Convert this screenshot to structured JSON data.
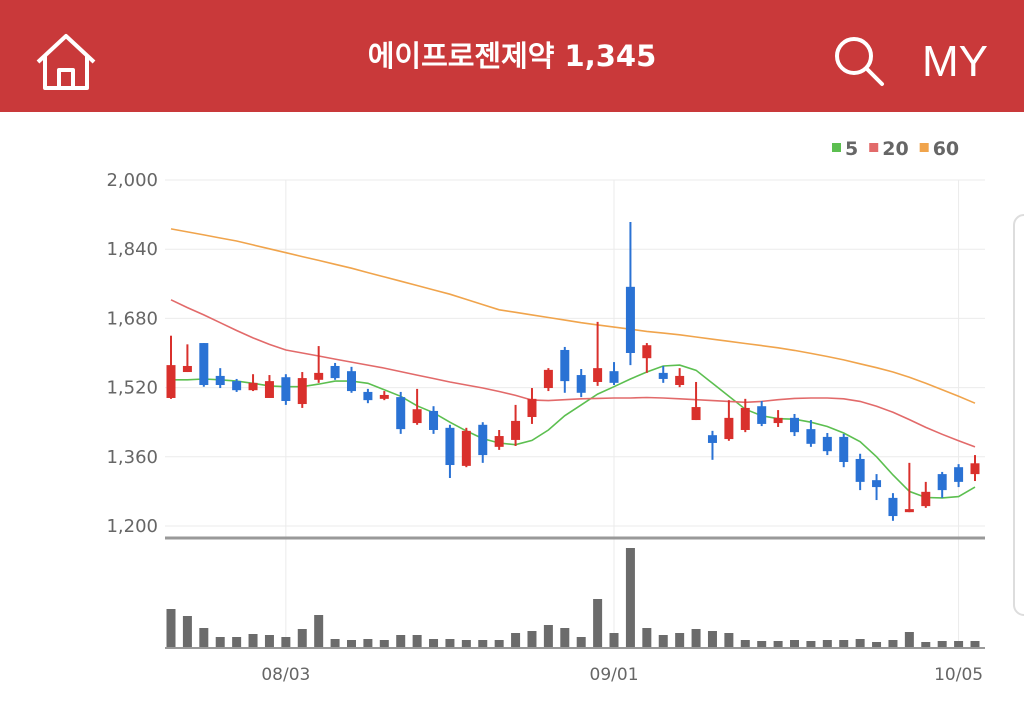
{
  "header": {
    "title": "에이프로젠제약 1,345",
    "right_label": "MY"
  },
  "chart_data": {
    "type": "candlestick",
    "categories": [
      null,
      null,
      null,
      null,
      null,
      null,
      null,
      "08/03",
      null,
      null,
      null,
      null,
      null,
      null,
      null,
      null,
      null,
      null,
      null,
      null,
      null,
      null,
      null,
      null,
      null,
      null,
      null,
      "09/01",
      null,
      null,
      null,
      null,
      null,
      null,
      null,
      null,
      null,
      null,
      null,
      null,
      null,
      null,
      null,
      null,
      null,
      null,
      null,
      null,
      "10/05",
      null
    ],
    "open": [
      1496,
      1556,
      1623,
      1547,
      1535,
      1514,
      1496,
      1544,
      1482,
      1538,
      1570,
      1558,
      1510,
      1494,
      1498,
      1438,
      1466,
      1427,
      1339,
      1434,
      1383,
      1399,
      1452,
      1519,
      1607,
      1549,
      1533,
      1558,
      1753,
      1588,
      1554,
      1526,
      1445,
      1410,
      1401,
      1422,
      1477,
      1438,
      1450,
      1424,
      1406,
      1406,
      1355,
      1306,
      1265,
      1232,
      1246,
      1320,
      1336,
      1320
    ],
    "high": [
      1640,
      1620,
      1623,
      1565,
      1540,
      1551,
      1549,
      1551,
      1556,
      1616,
      1577,
      1568,
      1517,
      1512,
      1510,
      1517,
      1477,
      1434,
      1427,
      1440,
      1422,
      1480,
      1519,
      1565,
      1614,
      1563,
      1672,
      1579,
      1903,
      1623,
      1570,
      1565,
      1533,
      1420,
      1491,
      1494,
      1489,
      1468,
      1459,
      1445,
      1415,
      1413,
      1367,
      1320,
      1276,
      1346,
      1302,
      1325,
      1343,
      1364
    ],
    "low": [
      1494,
      1556,
      1522,
      1519,
      1510,
      1512,
      1496,
      1480,
      1473,
      1531,
      1538,
      1508,
      1484,
      1491,
      1413,
      1434,
      1413,
      1311,
      1336,
      1346,
      1376,
      1385,
      1436,
      1512,
      1508,
      1498,
      1524,
      1526,
      1572,
      1554,
      1531,
      1521,
      1445,
      1353,
      1397,
      1417,
      1431,
      1429,
      1408,
      1383,
      1364,
      1336,
      1283,
      1260,
      1212,
      1232,
      1242,
      1265,
      1290,
      1304
    ],
    "close": [
      1572,
      1570,
      1526,
      1526,
      1514,
      1531,
      1535,
      1489,
      1542,
      1554,
      1542,
      1512,
      1491,
      1503,
      1424,
      1470,
      1422,
      1341,
      1420,
      1364,
      1408,
      1443,
      1494,
      1561,
      1535,
      1508,
      1565,
      1531,
      1600,
      1618,
      1540,
      1547,
      1475,
      1392,
      1450,
      1473,
      1436,
      1450,
      1417,
      1390,
      1373,
      1348,
      1302,
      1290,
      1223,
      1239,
      1279,
      1283,
      1302,
      1345
    ],
    "up_color": "#d9302c",
    "down_color": "#2a72d4",
    "ylim": [
      1200,
      2000
    ],
    "yticks": [
      {
        "value": 1200,
        "label": "1,200"
      },
      {
        "value": 1360,
        "label": "1,360"
      },
      {
        "value": 1520,
        "label": "1,520"
      },
      {
        "value": 1680,
        "label": "1,680"
      },
      {
        "value": 1840,
        "label": "1,840"
      },
      {
        "value": 2000,
        "label": "2,000"
      }
    ],
    "grid": true,
    "legend": "top-right",
    "series": [
      {
        "name": "5",
        "color": "#5cbf50",
        "values": [
          1538,
          1538,
          1540,
          1538,
          1535,
          1530,
          1524,
          1522,
          1522,
          1528,
          1535,
          1535,
          1530,
          1515,
          1500,
          1478,
          1462,
          1440,
          1420,
          1402,
          1392,
          1388,
          1398,
          1422,
          1455,
          1480,
          1505,
          1522,
          1540,
          1556,
          1570,
          1572,
          1560,
          1530,
          1500,
          1470,
          1455,
          1448,
          1447,
          1440,
          1430,
          1415,
          1395,
          1360,
          1318,
          1280,
          1266,
          1265,
          1268,
          1290
        ]
      },
      {
        "name": "20",
        "color": "#e26a6a",
        "values": [
          1723,
          1705,
          1688,
          1670,
          1652,
          1635,
          1620,
          1607,
          1600,
          1593,
          1586,
          1579,
          1572,
          1565,
          1557,
          1549,
          1541,
          1533,
          1526,
          1519,
          1511,
          1502,
          1491,
          1490,
          1492,
          1494,
          1495,
          1496,
          1496,
          1497,
          1496,
          1494,
          1492,
          1490,
          1488,
          1486,
          1488,
          1492,
          1495,
          1496,
          1496,
          1494,
          1488,
          1477,
          1463,
          1446,
          1428,
          1412,
          1397,
          1383
        ]
      },
      {
        "name": "60",
        "color": "#f0a44c",
        "values": [
          1887,
          1880,
          1873,
          1866,
          1859,
          1850,
          1841,
          1832,
          1823,
          1814,
          1805,
          1796,
          1786,
          1776,
          1766,
          1756,
          1746,
          1736,
          1724,
          1712,
          1700,
          1694,
          1688,
          1682,
          1676,
          1670,
          1665,
          1660,
          1655,
          1650,
          1646,
          1642,
          1637,
          1632,
          1627,
          1622,
          1617,
          1612,
          1606,
          1599,
          1592,
          1584,
          1575,
          1566,
          1556,
          1544,
          1530,
          1515,
          1500,
          1484
        ]
      }
    ],
    "volume": {
      "color": "#6b6b6b",
      "values": [
        38,
        31,
        19,
        10,
        10,
        13,
        12,
        10,
        18,
        32,
        8,
        7,
        8,
        7,
        12,
        12,
        8,
        8,
        7,
        7,
        7,
        14,
        16,
        22,
        19,
        10,
        48,
        14,
        99,
        19,
        12,
        14,
        18,
        16,
        14,
        7,
        6,
        6,
        7,
        6,
        7,
        7,
        8,
        5,
        7,
        15,
        5,
        6,
        6,
        6
      ]
    }
  }
}
